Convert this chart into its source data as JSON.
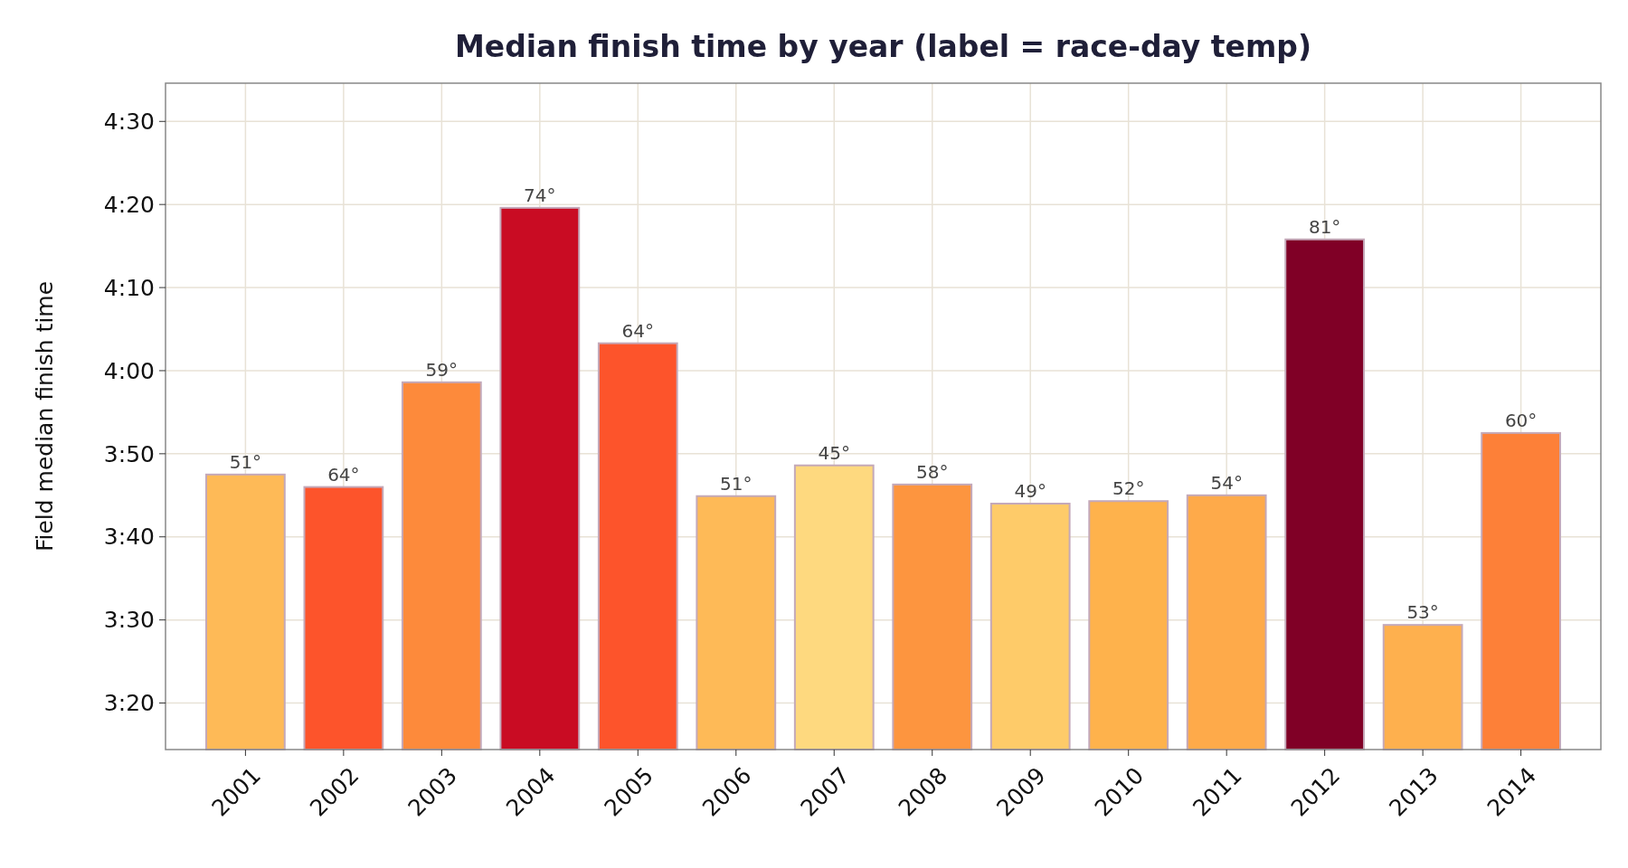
{
  "chart_data": {
    "type": "bar",
    "title": "Median finish time by year (label = race-day temp)",
    "ylabel": "Field median finish time",
    "categories": [
      "2001",
      "2002",
      "2003",
      "2004",
      "2005",
      "2006",
      "2007",
      "2008",
      "2009",
      "2010",
      "2011",
      "2012",
      "2013",
      "2014"
    ],
    "values": [
      227.5,
      226,
      238.6,
      259.6,
      243.3,
      224.9,
      228.6,
      226.3,
      224,
      224.3,
      225,
      255.8,
      209.4,
      232.5
    ],
    "colors": [
      "#feba57",
      "#fd542b",
      "#fd8a3b",
      "#c90c23",
      "#fd542b",
      "#feba57",
      "#fed97f",
      "#fd953f",
      "#fecb69",
      "#feb24c",
      "#feaa4a",
      "#800026",
      "#feb04e",
      "#fd8038"
    ],
    "annotations": [
      {
        "text": "51°",
        "x": "2001",
        "y": 227.5
      },
      {
        "text": "64°",
        "x": "2002",
        "y": 226
      },
      {
        "text": "59°",
        "x": "2003",
        "y": 238.6
      },
      {
        "text": "74°",
        "x": "2004",
        "y": 259.6
      },
      {
        "text": "64°",
        "x": "2005",
        "y": 243.3
      },
      {
        "text": "51°",
        "x": "2006",
        "y": 224.9
      },
      {
        "text": "45°",
        "x": "2007",
        "y": 228.6
      },
      {
        "text": "58°",
        "x": "2008",
        "y": 226.3
      },
      {
        "text": "49°",
        "x": "2009",
        "y": 224
      },
      {
        "text": "52°",
        "x": "2010",
        "y": 224.3
      },
      {
        "text": "54°",
        "x": "2011",
        "y": 225
      },
      {
        "text": "81°",
        "x": "2012",
        "y": 255.8
      },
      {
        "text": "53°",
        "x": "2013",
        "y": 209.4
      },
      {
        "text": "60°",
        "x": "2014",
        "y": 232.5
      }
    ],
    "ylim": [
      194.4,
      274.6
    ],
    "yticks": [
      {
        "value": 200,
        "label": "3:20"
      },
      {
        "value": 210,
        "label": "3:30"
      },
      {
        "value": 220,
        "label": "3:40"
      },
      {
        "value": 230,
        "label": "3:50"
      },
      {
        "value": 240,
        "label": "4:00"
      },
      {
        "value": 250,
        "label": "4:10"
      },
      {
        "value": 260,
        "label": "4:20"
      },
      {
        "value": 270,
        "label": "4:30"
      }
    ],
    "grid": true
  }
}
